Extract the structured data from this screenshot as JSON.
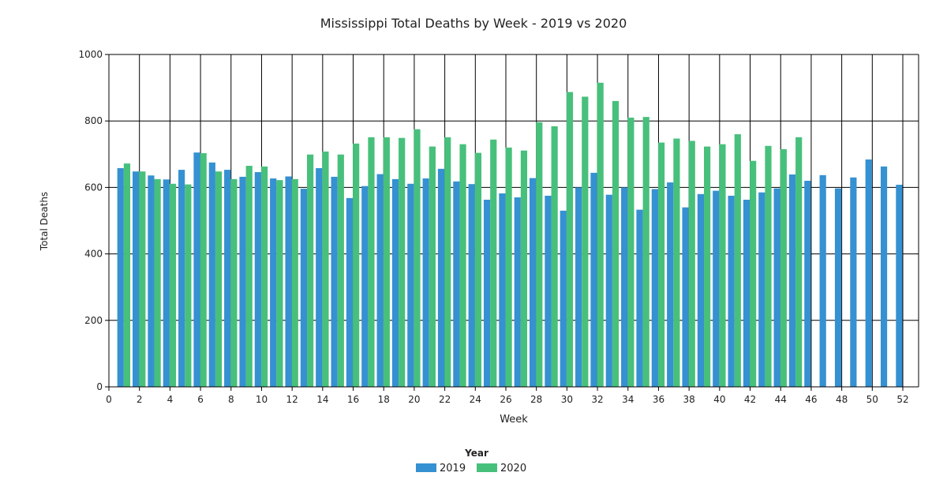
{
  "chart_data": {
    "type": "bar",
    "title": "Mississippi Total Deaths by Week - 2019 vs 2020",
    "xlabel": "Week",
    "ylabel": "Total Deaths",
    "ylim": [
      0,
      1000
    ],
    "xlim": [
      0,
      53
    ],
    "yticks": [
      0,
      200,
      400,
      600,
      800,
      1000
    ],
    "xticks": [
      0,
      2,
      4,
      6,
      8,
      10,
      12,
      14,
      16,
      18,
      20,
      22,
      24,
      26,
      28,
      30,
      32,
      34,
      36,
      38,
      40,
      42,
      44,
      46,
      48,
      50,
      52
    ],
    "grid": true,
    "legend": {
      "title": "Year",
      "placement": "bottom"
    },
    "series": [
      {
        "name": "2019",
        "color": "#3591d1",
        "x": [
          1,
          2,
          3,
          4,
          5,
          6,
          7,
          8,
          9,
          10,
          11,
          12,
          13,
          14,
          15,
          16,
          17,
          18,
          19,
          20,
          21,
          22,
          23,
          24,
          25,
          26,
          27,
          28,
          29,
          30,
          31,
          32,
          33,
          34,
          35,
          36,
          37,
          38,
          39,
          40,
          41,
          42,
          43,
          44,
          45,
          46,
          47,
          48,
          49,
          50,
          51,
          52
        ],
        "values": [
          658,
          648,
          636,
          624,
          653,
          705,
          675,
          653,
          632,
          646,
          627,
          633,
          596,
          658,
          632,
          568,
          604,
          640,
          625,
          611,
          627,
          656,
          618,
          610,
          563,
          582,
          570,
          628,
          575,
          530,
          600,
          644,
          578,
          600,
          533,
          595,
          615,
          540,
          580,
          590,
          575,
          563,
          585,
          597,
          639,
          620,
          637,
          597,
          630,
          684,
          663,
          608
        ]
      },
      {
        "name": "2020",
        "color": "#47c07c",
        "x": [
          1,
          2,
          3,
          4,
          5,
          6,
          7,
          8,
          9,
          10,
          11,
          12,
          13,
          14,
          15,
          16,
          17,
          18,
          19,
          20,
          21,
          22,
          23,
          24,
          25,
          26,
          27,
          28,
          29,
          30,
          31,
          32,
          33,
          34,
          35,
          36,
          37,
          38,
          39,
          40,
          41,
          42,
          43,
          44,
          45
        ],
        "values": [
          672,
          648,
          625,
          611,
          609,
          703,
          648,
          625,
          665,
          663,
          622,
          625,
          699,
          708,
          699,
          732,
          751,
          751,
          749,
          775,
          723,
          751,
          730,
          704,
          744,
          720,
          711,
          796,
          784,
          887,
          873,
          915,
          860,
          810,
          812,
          735,
          747,
          740,
          723,
          730,
          760,
          680,
          725,
          715,
          751
        ]
      }
    ]
  }
}
